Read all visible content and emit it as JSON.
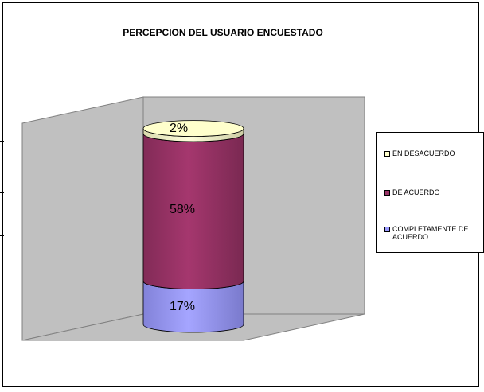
{
  "chart_data": {
    "type": "bar",
    "title": "PERCEPCION DEL USUARIO ENCUESTADO",
    "series": [
      {
        "name": "COMPLETAMENTE DE ACUERDO",
        "value": 17,
        "label": "17%",
        "color": "#9999ff"
      },
      {
        "name": "DE ACUERDO",
        "value": 58,
        "label": "58%",
        "color": "#993366"
      },
      {
        "name": "EN DESACUERDO",
        "value": 2,
        "label": "2%",
        "color": "#ffffcc"
      }
    ],
    "legend_order": [
      "EN DESACUERDO",
      "DE ACUERDO",
      "COMPLETAMENTE DE ACUERDO"
    ],
    "legend_position": "right",
    "colors": {
      "wall": "#c0c0c0",
      "floor": "#c0c0c0"
    }
  }
}
